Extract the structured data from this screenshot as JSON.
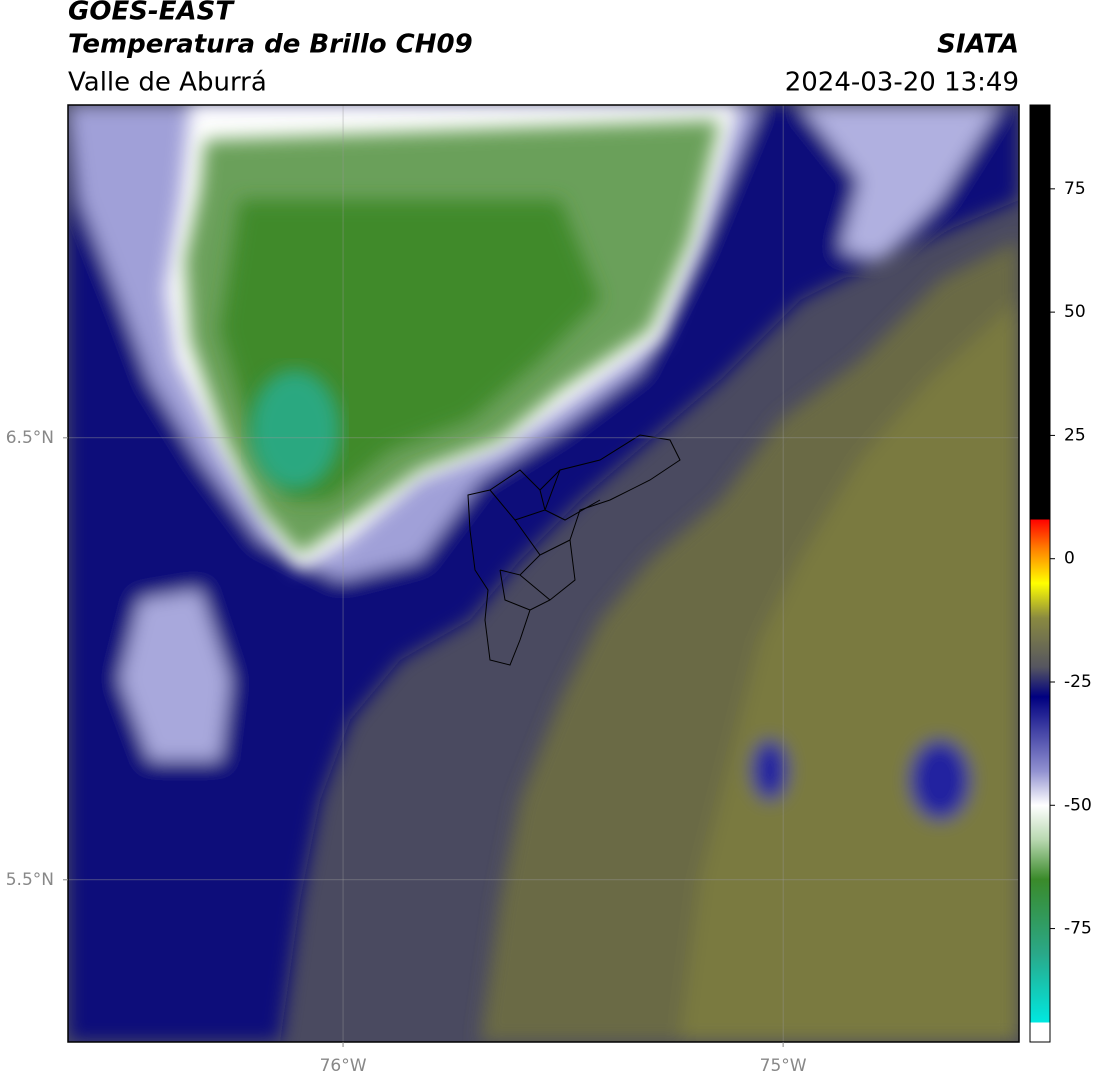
{
  "header": {
    "title": "GOES-EAST",
    "subtitle": "Temperatura de Brillo CH09",
    "region": "Valle de Aburrá",
    "source": "SIATA",
    "timestamp": "2024-03-20 13:49"
  },
  "map": {
    "xlim": [
      -76.625,
      -74.464
    ],
    "ylim": [
      5.133,
      7.253
    ],
    "xticks": [
      {
        "value": -76,
        "label": "76°W"
      },
      {
        "value": -75,
        "label": "75°W"
      }
    ],
    "yticks": [
      {
        "value": 6.5,
        "label": "6.5°N"
      },
      {
        "value": 5.5,
        "label": "5.5°N"
      }
    ],
    "grid": true
  },
  "colorbar": {
    "lim": [
      -98,
      92
    ],
    "ticks": [
      75,
      50,
      25,
      0,
      -25,
      -50,
      -75
    ],
    "stops": [
      {
        "value": -98,
        "color": "#ffffff"
      },
      {
        "value": -94,
        "color": "#ffffff"
      },
      {
        "value": -94,
        "color": "#00e8e0"
      },
      {
        "value": -80,
        "color": "#2aa888"
      },
      {
        "value": -65,
        "color": "#3a8a2a"
      },
      {
        "value": -57,
        "color": "#b8d8b0"
      },
      {
        "value": -50,
        "color": "#ffffff"
      },
      {
        "value": -43,
        "color": "#9090d0"
      },
      {
        "value": -28,
        "color": "#000080"
      },
      {
        "value": -22,
        "color": "#555560"
      },
      {
        "value": -12,
        "color": "#8a8a40"
      },
      {
        "value": -5,
        "color": "#ffff00"
      },
      {
        "value": 2,
        "color": "#ff8000"
      },
      {
        "value": 8,
        "color": "#ff0000"
      },
      {
        "value": 8,
        "color": "#000000"
      },
      {
        "value": 92,
        "color": "#000000"
      }
    ]
  }
}
